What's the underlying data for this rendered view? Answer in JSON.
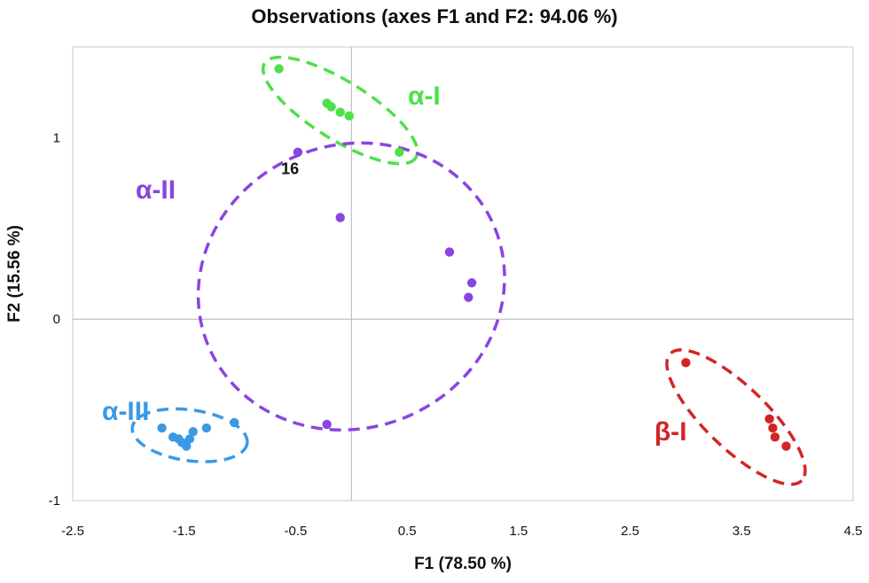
{
  "chart_data": {
    "type": "scatter",
    "title": "Observations (axes F1 and F2: 94.06 %)",
    "xlabel": "F1 (78.50 %)",
    "ylabel": "F2 (15.56 %)",
    "xlim": [
      -2.5,
      4.5
    ],
    "ylim": [
      -1,
      1.5
    ],
    "xticks": [
      "-2.5",
      "-1.5",
      "-0.5",
      "0.5",
      "1.5",
      "2.5",
      "3.5",
      "4.5"
    ],
    "yticks": [
      "-1",
      "0",
      "1"
    ],
    "grid": false,
    "zero_lines": true,
    "groups": [
      {
        "name": "α-I",
        "color": "#4ee04a",
        "points": [
          [
            -0.65,
            1.38
          ],
          [
            -0.22,
            1.19
          ],
          [
            -0.18,
            1.17
          ],
          [
            -0.1,
            1.14
          ],
          [
            -0.02,
            1.12
          ],
          [
            0.43,
            0.92
          ]
        ],
        "ellipse": {
          "cx": -0.1,
          "cy": 1.15,
          "rx": 0.8,
          "ry": 0.16,
          "angle_deg": 32
        }
      },
      {
        "name": "α-II",
        "color": "#8a44e0",
        "points": [
          [
            -0.48,
            0.92
          ],
          [
            -0.1,
            0.56
          ],
          [
            0.88,
            0.37
          ],
          [
            1.08,
            0.2
          ],
          [
            1.05,
            0.12
          ],
          [
            -0.22,
            -0.58
          ]
        ],
        "ellipse": {
          "cx": 0.0,
          "cy": 0.18,
          "rx": 1.39,
          "ry": 0.78,
          "angle_deg": -22
        }
      },
      {
        "name": "α-III",
        "color": "#3a9ae6",
        "points": [
          [
            -1.7,
            -0.6
          ],
          [
            -1.6,
            -0.65
          ],
          [
            -1.55,
            -0.66
          ],
          [
            -1.52,
            -0.68
          ],
          [
            -1.48,
            -0.7
          ],
          [
            -1.45,
            -0.66
          ],
          [
            -1.42,
            -0.62
          ],
          [
            -1.3,
            -0.6
          ],
          [
            -1.05,
            -0.57
          ]
        ],
        "ellipse": {
          "cx": -1.45,
          "cy": -0.64,
          "rx": 0.52,
          "ry": 0.14,
          "angle_deg": 8
        }
      },
      {
        "name": "β-I",
        "color": "#d22525",
        "points": [
          [
            3.0,
            -0.24
          ],
          [
            3.75,
            -0.55
          ],
          [
            3.78,
            -0.6
          ],
          [
            3.8,
            -0.65
          ],
          [
            3.9,
            -0.7
          ]
        ],
        "ellipse": {
          "cx": 3.45,
          "cy": -0.54,
          "rx": 0.82,
          "ry": 0.17,
          "angle_deg": 44
        }
      }
    ],
    "annotations": [
      {
        "text": "16",
        "x": -0.55,
        "y": 0.8
      }
    ]
  }
}
